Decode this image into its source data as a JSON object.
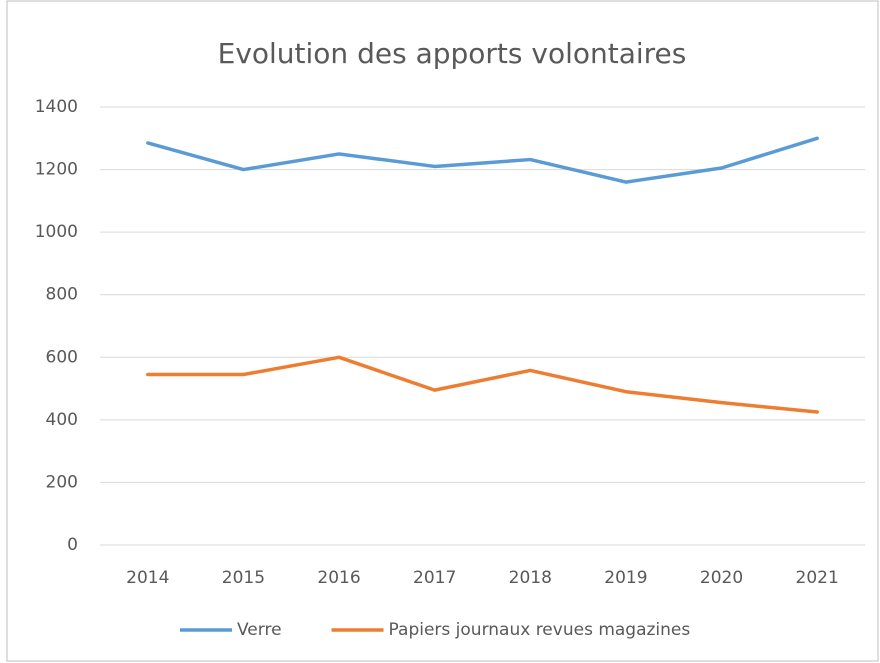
{
  "chart_data": {
    "type": "line",
    "title": "Evolution des apports volontaires",
    "categories": [
      "2014",
      "2015",
      "2016",
      "2017",
      "2018",
      "2019",
      "2020",
      "2021"
    ],
    "series": [
      {
        "name": "Verre",
        "color": "#5b9bd5",
        "values": [
          1285,
          1200,
          1250,
          1210,
          1232,
          1160,
          1205,
          1300
        ]
      },
      {
        "name": "Papiers journaux revues magazines",
        "color": "#ed7d31",
        "values": [
          545,
          545,
          600,
          495,
          558,
          490,
          455,
          425
        ]
      }
    ],
    "ylim": [
      0,
      1400
    ],
    "yticks": [
      0,
      200,
      400,
      600,
      800,
      1000,
      1200,
      1400
    ],
    "grid": true,
    "legend": "bottom"
  }
}
